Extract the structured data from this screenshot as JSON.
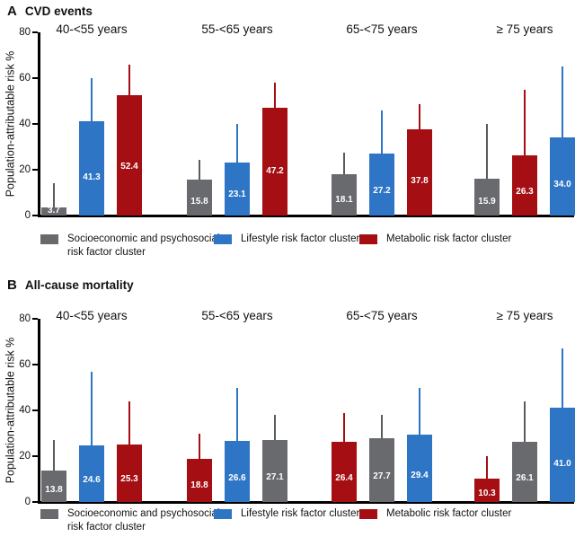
{
  "figure_title": "Population-attributable risk of risk factor clusters by age group",
  "colors": {
    "socioeconomic": "#696A6D",
    "lifestyle": "#2E75C5",
    "metabolic": "#A50E13",
    "axis": "#000000",
    "whisker_socioeconomic": "#5A5B5E"
  },
  "legend_items": [
    {
      "cluster": "socioeconomic",
      "lines": [
        "Socioeconomic and psychosocial",
        "risk factor cluster"
      ]
    },
    {
      "cluster": "lifestyle",
      "lines": [
        "Lifestyle risk factor cluster"
      ]
    },
    {
      "cluster": "metabolic",
      "lines": [
        "Metabolic risk factor cluster"
      ]
    }
  ],
  "chart_data": [
    {
      "type": "bar",
      "panel_letter": "A",
      "title": "CVD events",
      "ylabel": "Population-attributable risk %",
      "ylim": [
        0,
        80
      ],
      "yticks": [
        0,
        20,
        40,
        60,
        80
      ],
      "grid": false,
      "legend_position": "bottom",
      "legend": [
        "Socioeconomic and psychosocial risk factor cluster",
        "Lifestyle risk factor cluster",
        "Metabolic risk factor cluster"
      ],
      "categories": [
        "40-<55 years",
        "55-<65 years",
        "65-<75 years",
        "≥ 75 years"
      ],
      "groups": [
        {
          "category": "40-<55 years",
          "bars": [
            {
              "cluster": "socioeconomic",
              "value": 3.7,
              "label": "3.7",
              "upper_ci": 14
            },
            {
              "cluster": "lifestyle",
              "value": 41.3,
              "label": "41.3",
              "upper_ci": 60
            },
            {
              "cluster": "metabolic",
              "value": 52.4,
              "label": "52.4",
              "upper_ci": 66
            }
          ]
        },
        {
          "category": "55-<65 years",
          "bars": [
            {
              "cluster": "socioeconomic",
              "value": 15.8,
              "label": "15.8",
              "upper_ci": 24.5
            },
            {
              "cluster": "lifestyle",
              "value": 23.1,
              "label": "23.1",
              "upper_ci": 40
            },
            {
              "cluster": "metabolic",
              "value": 47.2,
              "label": "47.2",
              "upper_ci": 58
            }
          ]
        },
        {
          "category": "65-<75 years",
          "bars": [
            {
              "cluster": "socioeconomic",
              "value": 18.1,
              "label": "18.1",
              "upper_ci": 27.5
            },
            {
              "cluster": "lifestyle",
              "value": 27.2,
              "label": "27.2",
              "upper_ci": 46
            },
            {
              "cluster": "metabolic",
              "value": 37.8,
              "label": "37.8",
              "upper_ci": 48.5
            }
          ]
        },
        {
          "category": "≥ 75 years",
          "bars": [
            {
              "cluster": "socioeconomic",
              "value": 15.9,
              "label": "15.9",
              "upper_ci": 40
            },
            {
              "cluster": "metabolic",
              "value": 26.3,
              "label": "26.3",
              "upper_ci": 55
            },
            {
              "cluster": "lifestyle",
              "value": 34.0,
              "label": "34.0",
              "upper_ci": 65
            }
          ]
        }
      ]
    },
    {
      "type": "bar",
      "panel_letter": "B",
      "title": "All-cause mortality",
      "ylabel": "Population-attributable risk %",
      "ylim": [
        0,
        80
      ],
      "yticks": [
        0,
        20,
        40,
        60,
        80
      ],
      "grid": false,
      "legend_position": "bottom",
      "legend": [
        "Socioeconomic and psychosocial risk factor cluster",
        "Lifestyle risk factor cluster",
        "Metabolic risk factor cluster"
      ],
      "categories": [
        "40-<55 years",
        "55-<65 years",
        "65-<75 years",
        "≥ 75 years"
      ],
      "groups": [
        {
          "category": "40-<55 years",
          "bars": [
            {
              "cluster": "socioeconomic",
              "value": 13.8,
              "label": "13.8",
              "upper_ci": 27
            },
            {
              "cluster": "lifestyle",
              "value": 24.6,
              "label": "24.6",
              "upper_ci": 57
            },
            {
              "cluster": "metabolic",
              "value": 25.3,
              "label": "25.3",
              "upper_ci": 44
            }
          ]
        },
        {
          "category": "55-<65 years",
          "bars": [
            {
              "cluster": "metabolic",
              "value": 18.8,
              "label": "18.8",
              "upper_ci": 30
            },
            {
              "cluster": "lifestyle",
              "value": 26.6,
              "label": "26.6",
              "upper_ci": 50
            },
            {
              "cluster": "socioeconomic",
              "value": 27.1,
              "label": "27.1",
              "upper_ci": 38
            }
          ]
        },
        {
          "category": "65-<75 years",
          "bars": [
            {
              "cluster": "metabolic",
              "value": 26.4,
              "label": "26.4",
              "upper_ci": 39
            },
            {
              "cluster": "socioeconomic",
              "value": 27.7,
              "label": "27.7",
              "upper_ci": 38
            },
            {
              "cluster": "lifestyle",
              "value": 29.4,
              "label": "29.4",
              "upper_ci": 50
            }
          ]
        },
        {
          "category": "≥ 75 years",
          "bars": [
            {
              "cluster": "metabolic",
              "value": 10.3,
              "label": "10.3",
              "upper_ci": 20
            },
            {
              "cluster": "socioeconomic",
              "value": 26.1,
              "label": "26.1",
              "upper_ci": 44
            },
            {
              "cluster": "lifestyle",
              "value": 41.0,
              "label": "41.0",
              "upper_ci": 67
            }
          ]
        }
      ]
    }
  ]
}
